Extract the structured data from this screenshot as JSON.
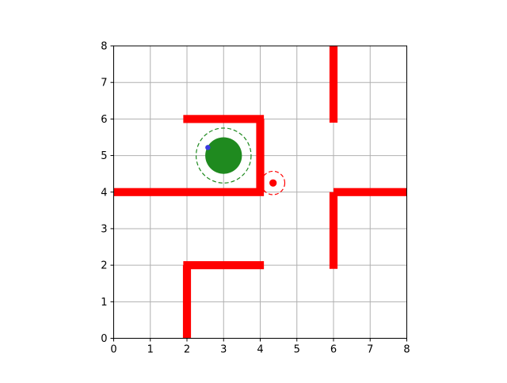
{
  "chart_data": {
    "type": "scatter",
    "title": "",
    "xlabel": "",
    "ylabel": "",
    "xlim": [
      0,
      8
    ],
    "ylim": [
      0,
      8
    ],
    "grid": true,
    "x_ticks": [
      "0",
      "1",
      "2",
      "3",
      "4",
      "5",
      "6",
      "7",
      "8"
    ],
    "y_ticks": [
      "0",
      "1",
      "2",
      "3",
      "4",
      "5",
      "6",
      "7",
      "8"
    ],
    "walls": [
      {
        "from": [
          6,
          5.9
        ],
        "to": [
          6,
          8
        ]
      },
      {
        "from": [
          1.9,
          6
        ],
        "to": [
          4.1,
          6
        ]
      },
      {
        "from": [
          4,
          4
        ],
        "to": [
          4,
          6
        ]
      },
      {
        "from": [
          0,
          4
        ],
        "to": [
          4.1,
          4
        ]
      },
      {
        "from": [
          6,
          4
        ],
        "to": [
          8,
          4
        ]
      },
      {
        "from": [
          6,
          1.9
        ],
        "to": [
          6,
          4
        ]
      },
      {
        "from": [
          1.9,
          2
        ],
        "to": [
          4.1,
          2
        ]
      },
      {
        "from": [
          2,
          0
        ],
        "to": [
          2,
          2
        ]
      }
    ],
    "goal": {
      "x": 3.0,
      "y": 5.0,
      "radius": 0.5,
      "zone_radius": 0.75
    },
    "agent": {
      "x": 4.35,
      "y": 4.25,
      "radius": 0.1,
      "zone_radius": 0.32
    },
    "marker": {
      "x": 2.57,
      "y": 5.22,
      "radius": 0.07
    },
    "colors": {
      "wall": "#ff0000",
      "goal": "#1f8a1f",
      "goal_zone": "#1f8a1f",
      "agent": "#ff0000",
      "agent_zone": "#ff0000",
      "marker": "#3a3adf",
      "grid": "#b0b0b0"
    }
  }
}
